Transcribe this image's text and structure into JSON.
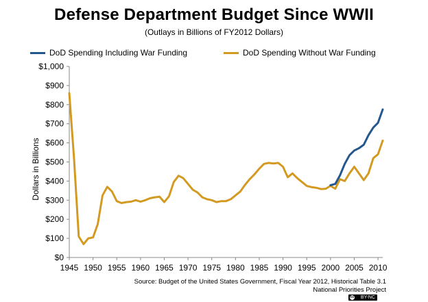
{
  "chart_data": {
    "type": "line",
    "title": "Defense Department Budget Since WWII",
    "subtitle": "(Outlays in Billions of FY2012 Dollars)",
    "ylabel": "Dollars in Billions",
    "xlabel": "",
    "xlim": [
      1945,
      2011
    ],
    "ylim": [
      0,
      1000
    ],
    "x_ticks": [
      1945,
      1950,
      1955,
      1960,
      1965,
      1970,
      1975,
      1980,
      1985,
      1990,
      1995,
      2000,
      2005,
      2010
    ],
    "y_ticks": [
      0,
      100,
      200,
      300,
      400,
      500,
      600,
      700,
      800,
      900,
      1000
    ],
    "y_tick_labels": [
      "$0",
      "$100",
      "$200",
      "$300",
      "$400",
      "$500",
      "$600",
      "$700",
      "$800",
      "$900",
      "$1,000"
    ],
    "grid": false,
    "legend_position": "top",
    "series": [
      {
        "name": "DoD Spending Including War Funding",
        "color": "#24578e",
        "x": [
          2000,
          2001,
          2002,
          2003,
          2004,
          2005,
          2006,
          2007,
          2008,
          2009,
          2010,
          2011
        ],
        "values": [
          378,
          385,
          430,
          490,
          535,
          560,
          572,
          590,
          640,
          680,
          705,
          775
        ]
      },
      {
        "name": "DoD Spending Without War Funding",
        "color": "#d39a22",
        "x": [
          1945,
          1946,
          1947,
          1948,
          1949,
          1950,
          1951,
          1952,
          1953,
          1954,
          1955,
          1956,
          1957,
          1958,
          1959,
          1960,
          1961,
          1962,
          1963,
          1964,
          1965,
          1966,
          1967,
          1968,
          1969,
          1970,
          1971,
          1972,
          1973,
          1974,
          1975,
          1976,
          1977,
          1978,
          1979,
          1980,
          1981,
          1982,
          1983,
          1984,
          1985,
          1986,
          1987,
          1988,
          1989,
          1990,
          1991,
          1992,
          1993,
          1994,
          1995,
          1996,
          1997,
          1998,
          1999,
          2000,
          2001,
          2002,
          2003,
          2004,
          2005,
          2006,
          2007,
          2008,
          2009,
          2010,
          2011
        ],
        "values": [
          860,
          520,
          110,
          70,
          100,
          105,
          175,
          325,
          370,
          345,
          295,
          285,
          290,
          292,
          300,
          292,
          300,
          310,
          315,
          318,
          290,
          320,
          395,
          428,
          415,
          385,
          355,
          340,
          315,
          305,
          300,
          290,
          295,
          295,
          305,
          325,
          345,
          380,
          410,
          435,
          465,
          490,
          495,
          492,
          495,
          475,
          420,
          440,
          415,
          395,
          375,
          368,
          365,
          358,
          360,
          375,
          360,
          410,
          400,
          440,
          475,
          440,
          405,
          440,
          520,
          540,
          612
        ]
      }
    ]
  },
  "source": {
    "line1": "Source: Budget of the United States Government, Fiscal Year 2012, Historical Table 3.1",
    "line2": "National Priorities Project"
  },
  "license_badge": "BY-NC"
}
